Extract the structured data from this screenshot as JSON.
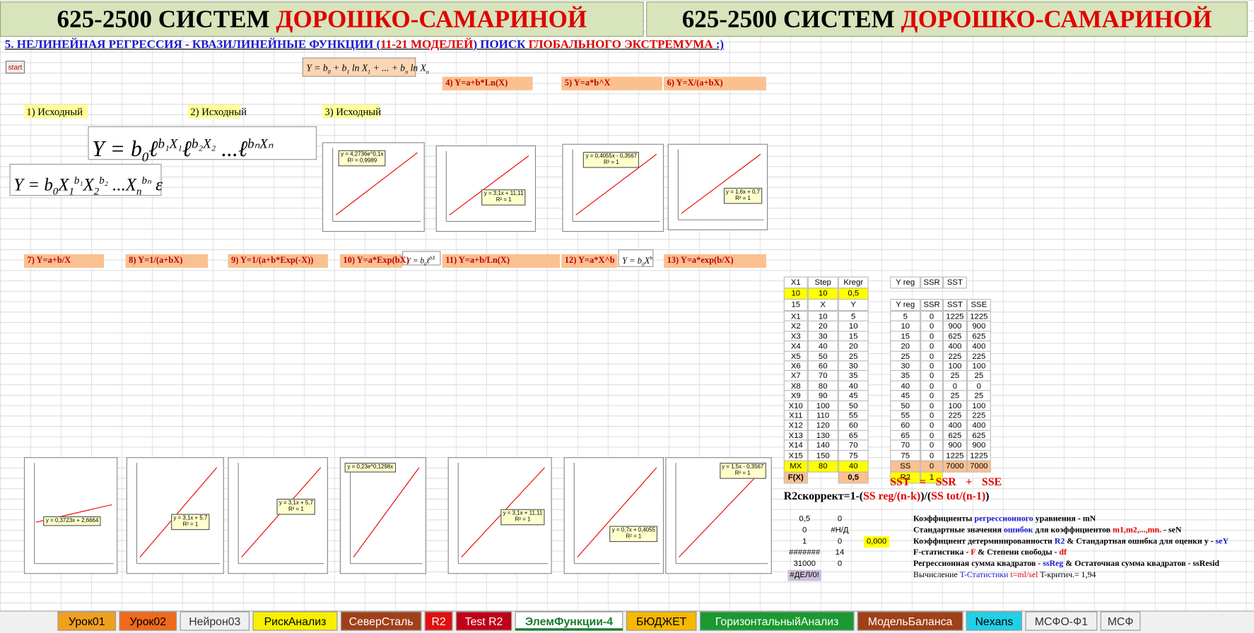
{
  "header": {
    "prefix": "625-2500 СИСТЕМ",
    "name": "ДОРОШКО-САМАРИНОЙ"
  },
  "subtitle": [
    {
      "text": "5. НЕЛИНЕЙНАЯ РЕГРЕССИЯ - КВАЗИЛИНЕЙНЫЕ ФУНКЦИИ (",
      "color": "#1a1ad0"
    },
    {
      "text": "11-21 МОДЕЛЕЙ",
      "color": "#e00000"
    },
    {
      "text": ") ПОИСК ",
      "color": "#1a1ad0"
    },
    {
      "text": "ГЛОБАЛЬНОГО ЭКСТРЕМУМА",
      "color": "#e00000"
    },
    {
      "text": " :)",
      "color": "#1a1ad0"
    }
  ],
  "start_button": "start",
  "formulas": [
    [
      {
        "t": "Y = b"
      },
      {
        "sub": "0"
      },
      {
        "t": " + b"
      },
      {
        "sub": "1"
      },
      {
        "t": " ln X"
      },
      {
        "sub": "1"
      },
      {
        "t": " + ... + b"
      },
      {
        "sub": "n"
      },
      {
        "t": " ln X"
      },
      {
        "sub": "n"
      }
    ],
    [
      {
        "t": "Y = b"
      },
      {
        "sub": "0"
      },
      {
        "t": "ℓ"
      },
      {
        "sup": "b₁X₁"
      },
      {
        "t": "ℓ"
      },
      {
        "sup": "b₂X₂"
      },
      {
        "t": " ...ℓ"
      },
      {
        "sup": "bₙXₙ"
      }
    ],
    [
      {
        "t": "Y = b"
      },
      {
        "sub": "0"
      },
      {
        "t": "X"
      },
      {
        "sub": "1"
      },
      {
        "sup": "b₁"
      },
      {
        "t": "X"
      },
      {
        "sub": "2"
      },
      {
        "sup": "b₂"
      },
      {
        "t": " ...X"
      },
      {
        "sub": "n"
      },
      {
        "sup": "bₙ"
      },
      {
        "t": " ε"
      }
    ],
    [
      {
        "t": "Y = b"
      },
      {
        "sub": "0"
      },
      {
        "t": "ℓ"
      },
      {
        "sup": "bX"
      }
    ],
    [
      {
        "t": "Y = b"
      },
      {
        "sub": "0"
      },
      {
        "t": "X"
      },
      {
        "sup": "b"
      }
    ]
  ],
  "models": [
    "1) Исходный",
    "2) Исходный",
    "3) Исходный",
    "4) Y=a+b*Ln(X)",
    "5) Y=a*b^X",
    "6) Y=X/(a+bX)",
    "7) Y=a+b/X",
    "8) Y=1/(a+bX)",
    "9) Y=1/(a+b*Exp(-X))",
    "10) Y=a*Exp(bX)",
    "11) Y=a+b/Ln(X)",
    "12) Y=a*X^b",
    "13) Y=a*exp(b/X)"
  ],
  "charts": [
    {
      "label": [
        "y = 4,2736e^0,1x",
        "R² = 0,9989"
      ]
    },
    {
      "label": [
        "y = 3,1x + 11,11",
        "R² = 1"
      ]
    },
    {
      "label": [
        "y = 0,4055x - 0,3567",
        "R² = 1"
      ]
    },
    {
      "label": [
        "y = 1,6x + 0,7",
        "R² = 1"
      ]
    },
    {
      "label": [
        "y = 0,3723x + 2,6664"
      ]
    },
    {
      "label": [
        "y = 3,1x + 5,7",
        "R² = 1"
      ]
    },
    {
      "label": [
        "y = 3,1x + 5,7",
        "R² = 1"
      ]
    },
    {
      "label": [
        "y = 0,23e^0,1298x"
      ]
    },
    {
      "label": [
        "y = 3,1x + 11,11",
        "R² = 1"
      ]
    },
    {
      "label": [
        "y = 0,7x + 0,4055",
        "R² = 1"
      ]
    },
    {
      "label": [
        "y = 1,5x - 0,3567",
        "R² = 1"
      ]
    }
  ],
  "x_table": {
    "head": [
      "X1",
      "Step",
      "Kregr"
    ],
    "settings": [
      10,
      10,
      "0,5"
    ],
    "head2": [
      15,
      "X",
      "Y"
    ],
    "rows": [
      [
        "X1",
        10,
        5
      ],
      [
        "X2",
        20,
        10
      ],
      [
        "X3",
        30,
        15
      ],
      [
        "X4",
        40,
        20
      ],
      [
        "X5",
        50,
        25
      ],
      [
        "X6",
        60,
        30
      ],
      [
        "X7",
        70,
        35
      ],
      [
        "X8",
        80,
        40
      ],
      [
        "X9",
        90,
        45
      ],
      [
        "X10",
        100,
        50
      ],
      [
        "X11",
        110,
        55
      ],
      [
        "X12",
        120,
        60
      ],
      [
        "X13",
        130,
        65
      ],
      [
        "X14",
        140,
        70
      ],
      [
        "X15",
        150,
        75
      ]
    ],
    "mx": [
      "MX",
      80,
      40
    ],
    "fx": [
      "F(X)",
      "0,5"
    ]
  },
  "yreg_table": {
    "head": [
      "Y reg",
      "SSR",
      "SST"
    ],
    "head2": [
      "Y reg",
      "SSR",
      "SST",
      "SSE"
    ],
    "rows": [
      [
        5,
        0,
        1225,
        1225
      ],
      [
        10,
        0,
        900,
        900
      ],
      [
        15,
        0,
        625,
        625
      ],
      [
        20,
        0,
        400,
        400
      ],
      [
        25,
        0,
        225,
        225
      ],
      [
        30,
        0,
        100,
        100
      ],
      [
        35,
        0,
        25,
        25
      ],
      [
        40,
        0,
        0,
        0
      ],
      [
        45,
        0,
        25,
        25
      ],
      [
        50,
        0,
        100,
        100
      ],
      [
        55,
        0,
        225,
        225
      ],
      [
        60,
        0,
        400,
        400
      ],
      [
        65,
        0,
        625,
        625
      ],
      [
        70,
        0,
        900,
        900
      ],
      [
        75,
        0,
        1225,
        1225
      ]
    ],
    "ss": [
      "SS",
      0,
      7000,
      7000
    ],
    "r2": [
      "R2",
      1
    ]
  },
  "equation": [
    "SST",
    "=",
    "SSR",
    "+",
    "SSE"
  ],
  "r2_formula": [
    {
      "text": "R2скоррект=1-(",
      "color": "#000"
    },
    {
      "text": "SS reg/(n-k)",
      "color": "#e00000"
    },
    {
      "text": ")/(",
      "color": "#000"
    },
    {
      "text": "SS tot/(n-1)",
      "color": "#e00000"
    },
    {
      "text": ")",
      "color": "#000"
    }
  ],
  "linest": [
    [
      "0,5",
      "0"
    ],
    [
      "0",
      "#Н/Д"
    ],
    [
      "1",
      "0",
      "0,000"
    ],
    [
      "#######",
      "14"
    ],
    [
      "31000",
      "0"
    ],
    [
      "#ДЕЛ/0!"
    ]
  ],
  "notes": [
    [
      {
        "text": "Коэффициенты ",
        "color": "#000"
      },
      {
        "text": "регрессионного",
        "color": "#1a1ad0"
      },
      {
        "text": " уравнения - mN",
        "color": "#000"
      }
    ],
    [
      {
        "text": "Стандартные",
        "color": "#000"
      },
      {
        "text": " значения ",
        "color": "#000"
      },
      {
        "text": "ошибок",
        "color": "#1a1ad0"
      },
      {
        "text": " для коэффициентов ",
        "color": "#000"
      },
      {
        "text": "m1,m2,...,mn.",
        "color": "#e00000"
      },
      {
        "text": " - seN",
        "color": "#000"
      }
    ],
    [
      {
        "text": "Коэффициент ",
        "color": "#000"
      },
      {
        "text": "детерминированности ",
        "color": "#000"
      },
      {
        "text": "R2",
        "color": "#1a1ad0"
      },
      {
        "text": " & ",
        "color": "#000"
      },
      {
        "text": "Стандартная ошибка",
        "color": "#000"
      },
      {
        "text": " для оценки y - ",
        "color": "#000"
      },
      {
        "text": "seY",
        "color": "#1a1ad0"
      }
    ],
    [
      {
        "text": "F-статистика",
        "color": "#000"
      },
      {
        "text": " - ",
        "color": "#000"
      },
      {
        "text": "F",
        "color": "#e00000"
      },
      {
        "text": " & Степени ",
        "color": "#000"
      },
      {
        "text": "свободы",
        "color": "#000"
      },
      {
        "text": " - ",
        "color": "#000"
      },
      {
        "text": "df",
        "color": "#e00000"
      }
    ],
    [
      {
        "text": "Регрессионная",
        "color": "#000"
      },
      {
        "text": " сумма квадратов - ",
        "color": "#000"
      },
      {
        "text": "ssReg",
        "color": "#1a1ad0"
      },
      {
        "text": " & ",
        "color": "#000"
      },
      {
        "text": "Остаточная",
        "color": "#000"
      },
      {
        "text": " сумма квадратов - ssResid",
        "color": "#000"
      }
    ],
    [
      {
        "text": "Вычисление ",
        "color": "#000"
      },
      {
        "text": "T-Статистики",
        "color": "#1a1ad0"
      },
      {
        "text": " t=ml/sel",
        "color": "#e00000"
      },
      {
        "text": " T-критич.= 1,94",
        "color": "#000"
      }
    ]
  ],
  "tabs": [
    {
      "label": "Урок01",
      "bg": "#f0a020",
      "fg": "#000"
    },
    {
      "label": "Урок02",
      "bg": "#f06a1a",
      "fg": "#000"
    },
    {
      "label": "Нейрон03",
      "bg": "#f0f0f0",
      "fg": "#333"
    },
    {
      "label": "РискАнализ",
      "bg": "#f8f000",
      "fg": "#000"
    },
    {
      "label": "СеверСталь",
      "bg": "#a0401a",
      "fg": "#fff"
    },
    {
      "label": "R2",
      "bg": "#e01010",
      "fg": "#fff"
    },
    {
      "label": "Test R2",
      "bg": "#c00018",
      "fg": "#fff"
    },
    {
      "label": "ЭлемФункции-4",
      "bg": "#ffffff",
      "fg": "#1a7a30"
    },
    {
      "label": "БЮДЖЕТ",
      "bg": "#f8b800",
      "fg": "#000"
    },
    {
      "label": "ГоризонтальныйАнализ",
      "bg": "#1a9a30",
      "fg": "#fff"
    },
    {
      "label": "МодельБаланса",
      "bg": "#a04018",
      "fg": "#fff"
    },
    {
      "label": "Nexans",
      "bg": "#20d0e8",
      "fg": "#000"
    },
    {
      "label": "МСФО-Ф1",
      "bg": "#f0f0f0",
      "fg": "#333"
    },
    {
      "label": "МСФ",
      "bg": "#f0f0f0",
      "fg": "#333"
    }
  ]
}
